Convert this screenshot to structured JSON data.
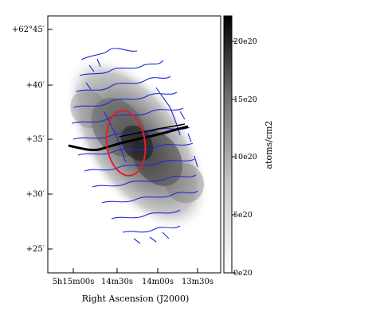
{
  "figure": {
    "dec_ticks": [
      "+62°45′",
      "+40′",
      "+35′",
      "+30′",
      "+25′"
    ],
    "ra_ticks": [
      "5h15m00s",
      "14m30s",
      "14m00s",
      "13m30s"
    ],
    "xlabel": "Right Ascension (J2000)",
    "colorbar_unit": "atoms/cm2",
    "colorbar_ticks": [
      "0e20",
      "5e20",
      "10e20",
      "15e20",
      "20e20"
    ],
    "colorbar_range": [
      0,
      22
    ],
    "colors": {
      "contours": "#1f2bd8",
      "ellipse": "#e0202a",
      "axis_line": "#000000"
    }
  }
}
